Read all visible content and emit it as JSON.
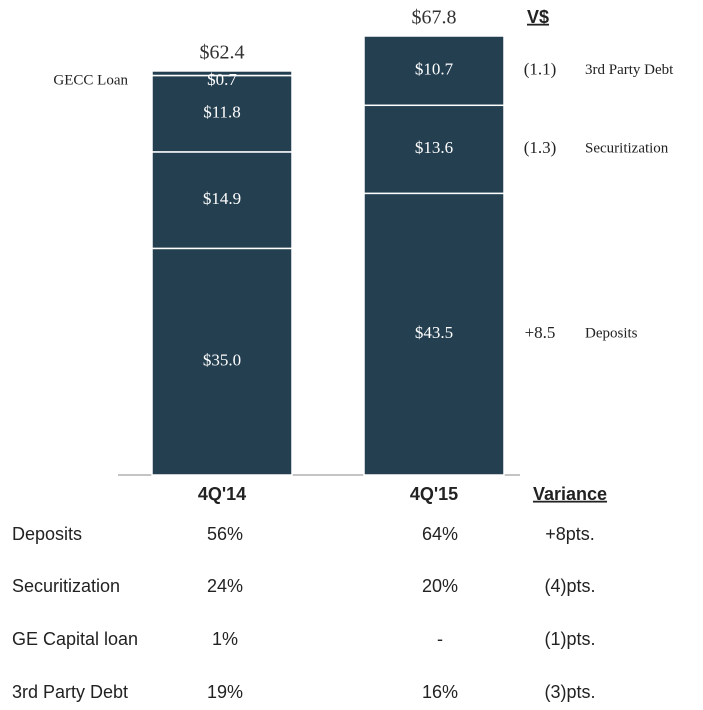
{
  "chart_data": {
    "type": "bar",
    "stacked": true,
    "categories": [
      "4Q'14",
      "4Q'15"
    ],
    "series": [
      {
        "name": "Deposits",
        "color": "#243f50",
        "values": [
          35.0,
          43.5
        ],
        "value_labels": [
          "$35.0",
          "$43.5"
        ],
        "variance": 8.5,
        "variance_label": "+8.5"
      },
      {
        "name": "Securitization",
        "color": "#243f50",
        "values": [
          14.9,
          13.6
        ],
        "value_labels": [
          "$14.9",
          "$13.6"
        ],
        "variance": -1.3,
        "variance_label": "(1.3)"
      },
      {
        "name": "3rd Party Debt",
        "color": "#243f50",
        "values": [
          11.8,
          10.7
        ],
        "value_labels": [
          "$11.8",
          "$10.7"
        ],
        "variance": -1.1,
        "variance_label": "(1.1)"
      },
      {
        "name": "GECC Loan",
        "color": "#243f50",
        "values": [
          0.7,
          null
        ],
        "value_labels": [
          "$0.7",
          null
        ]
      }
    ],
    "totals": [
      62.4,
      67.8
    ],
    "total_labels": [
      "$62.4",
      "$67.8"
    ],
    "variance_header": "V$"
  },
  "table": {
    "header": "Variance",
    "rows": [
      [
        "Deposits",
        "56%",
        "64%",
        "+8pts."
      ],
      [
        "Securitization",
        "24%",
        "20%",
        "(4)pts."
      ],
      [
        "GE Capital loan",
        "1%",
        "-",
        "(1)pts."
      ],
      [
        "3rd Party Debt",
        "19%",
        "16%",
        "(3)pts."
      ]
    ]
  }
}
